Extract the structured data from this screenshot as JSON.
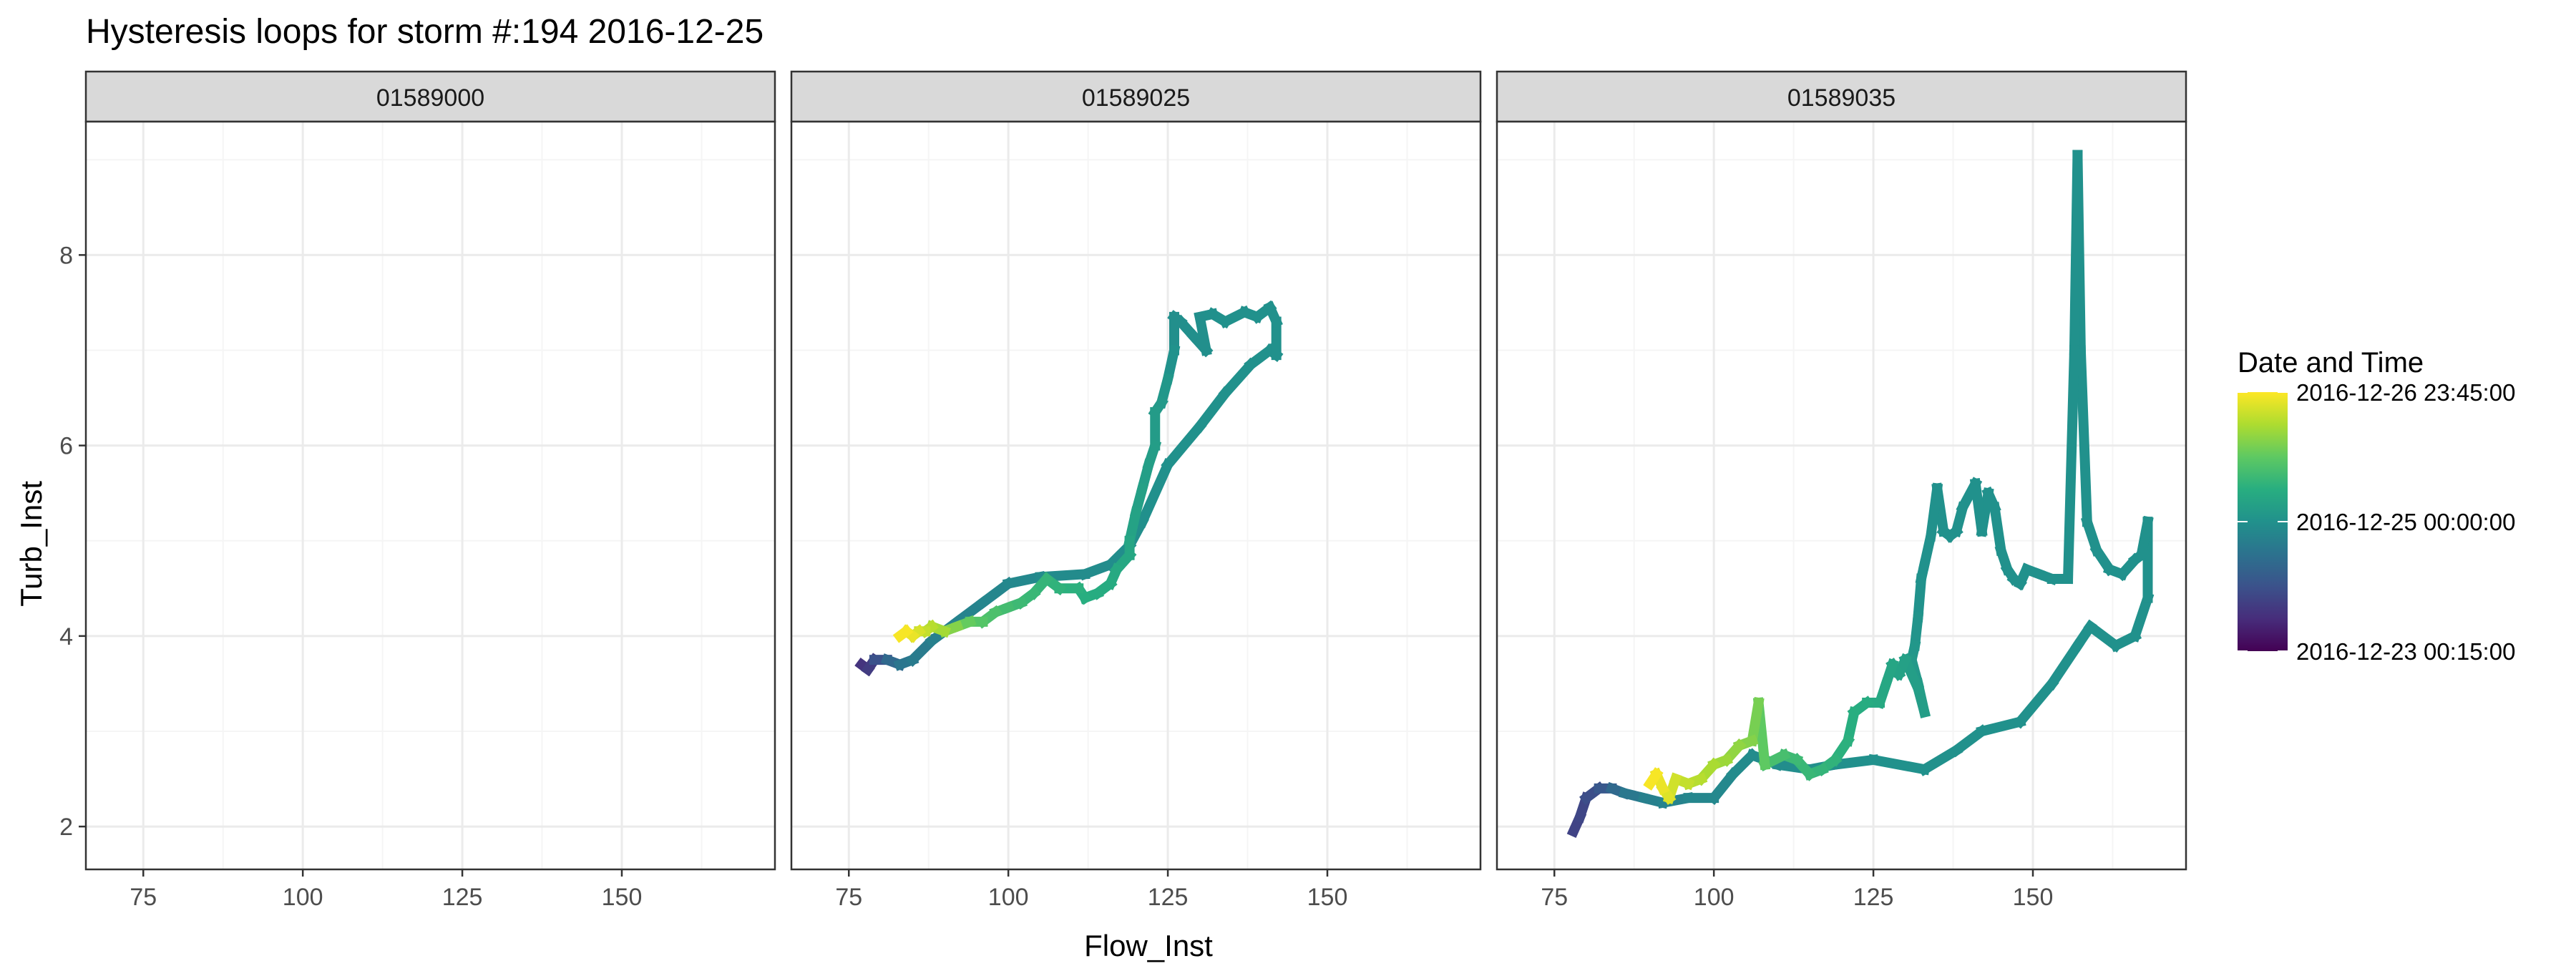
{
  "chart_data": {
    "type": "line",
    "title": "Hysteresis loops for storm #:194   2016-12-25",
    "xlabel": "Flow_Inst",
    "ylabel": "Turb_Inst",
    "xlim": [
      66,
      174
    ],
    "ylim": [
      1.55,
      9.4
    ],
    "xticks": [
      75,
      100,
      125,
      150
    ],
    "yticks": [
      2,
      4,
      6,
      8
    ],
    "grid": true,
    "legend": {
      "title": "Date and Time",
      "position": "right",
      "labels": [
        "2016-12-26 23:45:00",
        "2016-12-25 00:00:00",
        "2016-12-23 00:15:00"
      ],
      "label_positions": [
        1,
        0.5,
        0
      ]
    },
    "colors": {
      "viridis": [
        "#440154",
        "#472d7b",
        "#3b528b",
        "#2c728e",
        "#21918c",
        "#28ae80",
        "#5ec962",
        "#addc30",
        "#fde725"
      ],
      "strip_fill": "#d9d9d9",
      "grid_major": "#ebebeb",
      "grid_minor": "#f5f5f5"
    },
    "panels": [
      {
        "id": "01589000",
        "points": []
      },
      {
        "id": "01589025",
        "points": [
          [
            77,
            3.7,
            0.15
          ],
          [
            78,
            3.65,
            0.15
          ],
          [
            79,
            3.75,
            0.2
          ],
          [
            81,
            3.75,
            0.3
          ],
          [
            83,
            3.7,
            0.38
          ],
          [
            85,
            3.75,
            0.4
          ],
          [
            88,
            3.95,
            0.42
          ],
          [
            92,
            4.15,
            0.44
          ],
          [
            96,
            4.35,
            0.45
          ],
          [
            100,
            4.55,
            0.46
          ],
          [
            105,
            4.62,
            0.47
          ],
          [
            112,
            4.65,
            0.48
          ],
          [
            116,
            4.75,
            0.48
          ],
          [
            119,
            4.95,
            0.49
          ],
          [
            121,
            5.2,
            0.49
          ],
          [
            125,
            5.8,
            0.5
          ],
          [
            130,
            6.2,
            0.5
          ],
          [
            134,
            6.55,
            0.5
          ],
          [
            138,
            6.85,
            0.5
          ],
          [
            141,
            7.0,
            0.5
          ],
          [
            142,
            6.95,
            0.5
          ],
          [
            142,
            7.3,
            0.5
          ],
          [
            141,
            7.45,
            0.5
          ],
          [
            139,
            7.35,
            0.5
          ],
          [
            137,
            7.4,
            0.5
          ],
          [
            134,
            7.3,
            0.5
          ],
          [
            132,
            7.38,
            0.5
          ],
          [
            130,
            7.35,
            0.49
          ],
          [
            131,
            7.0,
            0.49
          ],
          [
            129,
            7.15,
            0.49
          ],
          [
            127,
            7.3,
            0.49
          ],
          [
            126,
            7.35,
            0.49
          ],
          [
            126,
            7.0,
            0.49
          ],
          [
            125,
            6.7,
            0.52
          ],
          [
            124,
            6.45,
            0.53
          ],
          [
            123,
            6.35,
            0.54
          ],
          [
            123,
            6.0,
            0.55
          ],
          [
            122,
            5.8,
            0.55
          ],
          [
            121,
            5.55,
            0.56
          ],
          [
            120,
            5.3,
            0.57
          ],
          [
            119,
            5.0,
            0.58
          ],
          [
            119,
            4.85,
            0.59
          ],
          [
            117,
            4.7,
            0.6
          ],
          [
            116,
            4.55,
            0.61
          ],
          [
            114,
            4.45,
            0.61
          ],
          [
            112,
            4.4,
            0.62
          ],
          [
            111,
            4.5,
            0.63
          ],
          [
            108,
            4.5,
            0.64
          ],
          [
            106,
            4.6,
            0.65
          ],
          [
            104,
            4.45,
            0.66
          ],
          [
            102,
            4.35,
            0.67
          ],
          [
            100,
            4.3,
            0.68
          ],
          [
            98,
            4.25,
            0.7
          ],
          [
            96,
            4.15,
            0.72
          ],
          [
            94,
            4.15,
            0.74
          ],
          [
            92,
            4.1,
            0.78
          ],
          [
            90,
            4.05,
            0.84
          ],
          [
            88,
            4.1,
            0.88
          ],
          [
            87,
            4.05,
            0.9
          ],
          [
            86,
            4.05,
            0.92
          ],
          [
            85,
            4.0,
            0.96
          ],
          [
            84,
            4.05,
            0.98
          ],
          [
            83,
            4.0,
            1.0
          ]
        ]
      },
      {
        "id": "01589035",
        "points": [
          [
            78,
            1.95,
            0.2
          ],
          [
            79,
            2.1,
            0.2
          ],
          [
            80,
            2.3,
            0.22
          ],
          [
            82,
            2.4,
            0.25
          ],
          [
            84,
            2.4,
            0.3
          ],
          [
            86,
            2.35,
            0.38
          ],
          [
            89,
            2.3,
            0.42
          ],
          [
            92,
            2.25,
            0.44
          ],
          [
            96,
            2.3,
            0.45
          ],
          [
            100,
            2.3,
            0.46
          ],
          [
            103,
            2.55,
            0.47
          ],
          [
            106,
            2.75,
            0.48
          ],
          [
            110,
            2.65,
            0.48
          ],
          [
            115,
            2.6,
            0.49
          ],
          [
            119,
            2.65,
            0.49
          ],
          [
            125,
            2.7,
            0.5
          ],
          [
            133,
            2.6,
            0.5
          ],
          [
            138,
            2.8,
            0.5
          ],
          [
            142,
            3.0,
            0.5
          ],
          [
            148,
            3.1,
            0.5
          ],
          [
            153,
            3.5,
            0.5
          ],
          [
            157,
            3.9,
            0.5
          ],
          [
            159,
            4.1,
            0.5
          ],
          [
            163,
            3.9,
            0.5
          ],
          [
            166,
            4.0,
            0.5
          ],
          [
            168,
            4.4,
            0.5
          ],
          [
            168,
            5.2,
            0.5
          ],
          [
            167,
            4.85,
            0.5
          ],
          [
            166,
            4.8,
            0.5
          ],
          [
            164,
            4.65,
            0.5
          ],
          [
            162,
            4.7,
            0.5
          ],
          [
            160,
            4.9,
            0.5
          ],
          [
            158.5,
            5.2,
            0.5
          ],
          [
            157.5,
            7.0,
            0.5
          ],
          [
            157,
            9.05,
            0.5
          ],
          [
            156.5,
            7.0,
            0.5
          ],
          [
            155.5,
            4.6,
            0.5
          ],
          [
            153,
            4.6,
            0.5
          ],
          [
            151,
            4.65,
            0.5
          ],
          [
            149,
            4.7,
            0.5
          ],
          [
            148,
            4.55,
            0.5
          ],
          [
            147,
            4.6,
            0.5
          ],
          [
            146,
            4.7,
            0.5
          ],
          [
            145,
            4.9,
            0.5
          ],
          [
            144,
            5.35,
            0.5
          ],
          [
            143,
            5.5,
            0.5
          ],
          [
            142,
            5.1,
            0.5
          ],
          [
            141,
            5.6,
            0.5
          ],
          [
            139,
            5.35,
            0.5
          ],
          [
            138,
            5.1,
            0.5
          ],
          [
            137,
            5.05,
            0.5
          ],
          [
            136,
            5.1,
            0.5
          ],
          [
            135,
            5.55,
            0.5
          ],
          [
            134,
            5.05,
            0.5
          ],
          [
            133,
            4.75,
            0.5
          ],
          [
            132.5,
            4.6,
            0.5
          ],
          [
            132,
            4.2,
            0.51
          ],
          [
            131.5,
            3.9,
            0.52
          ],
          [
            131,
            3.75,
            0.53
          ],
          [
            132,
            3.5,
            0.54
          ],
          [
            133,
            3.2,
            0.55
          ],
          [
            132,
            3.45,
            0.55
          ],
          [
            130,
            3.75,
            0.56
          ],
          [
            129,
            3.6,
            0.57
          ],
          [
            128,
            3.7,
            0.58
          ],
          [
            127,
            3.5,
            0.59
          ],
          [
            126,
            3.3,
            0.6
          ],
          [
            124,
            3.3,
            0.61
          ],
          [
            122,
            3.2,
            0.62
          ],
          [
            121,
            2.9,
            0.63
          ],
          [
            119,
            2.7,
            0.64
          ],
          [
            117,
            2.6,
            0.65
          ],
          [
            115,
            2.55,
            0.66
          ],
          [
            113,
            2.7,
            0.67
          ],
          [
            111,
            2.75,
            0.68
          ],
          [
            108,
            2.65,
            0.72
          ],
          [
            107,
            3.3,
            0.78
          ],
          [
            106,
            2.9,
            0.8
          ],
          [
            104,
            2.85,
            0.82
          ],
          [
            102,
            2.7,
            0.84
          ],
          [
            100,
            2.65,
            0.86
          ],
          [
            98,
            2.5,
            0.88
          ],
          [
            96,
            2.45,
            0.9
          ],
          [
            94,
            2.5,
            0.92
          ],
          [
            93,
            2.3,
            0.94
          ],
          [
            92,
            2.4,
            0.96
          ],
          [
            91,
            2.55,
            0.98
          ],
          [
            90,
            2.45,
            1.0
          ]
        ]
      }
    ]
  }
}
